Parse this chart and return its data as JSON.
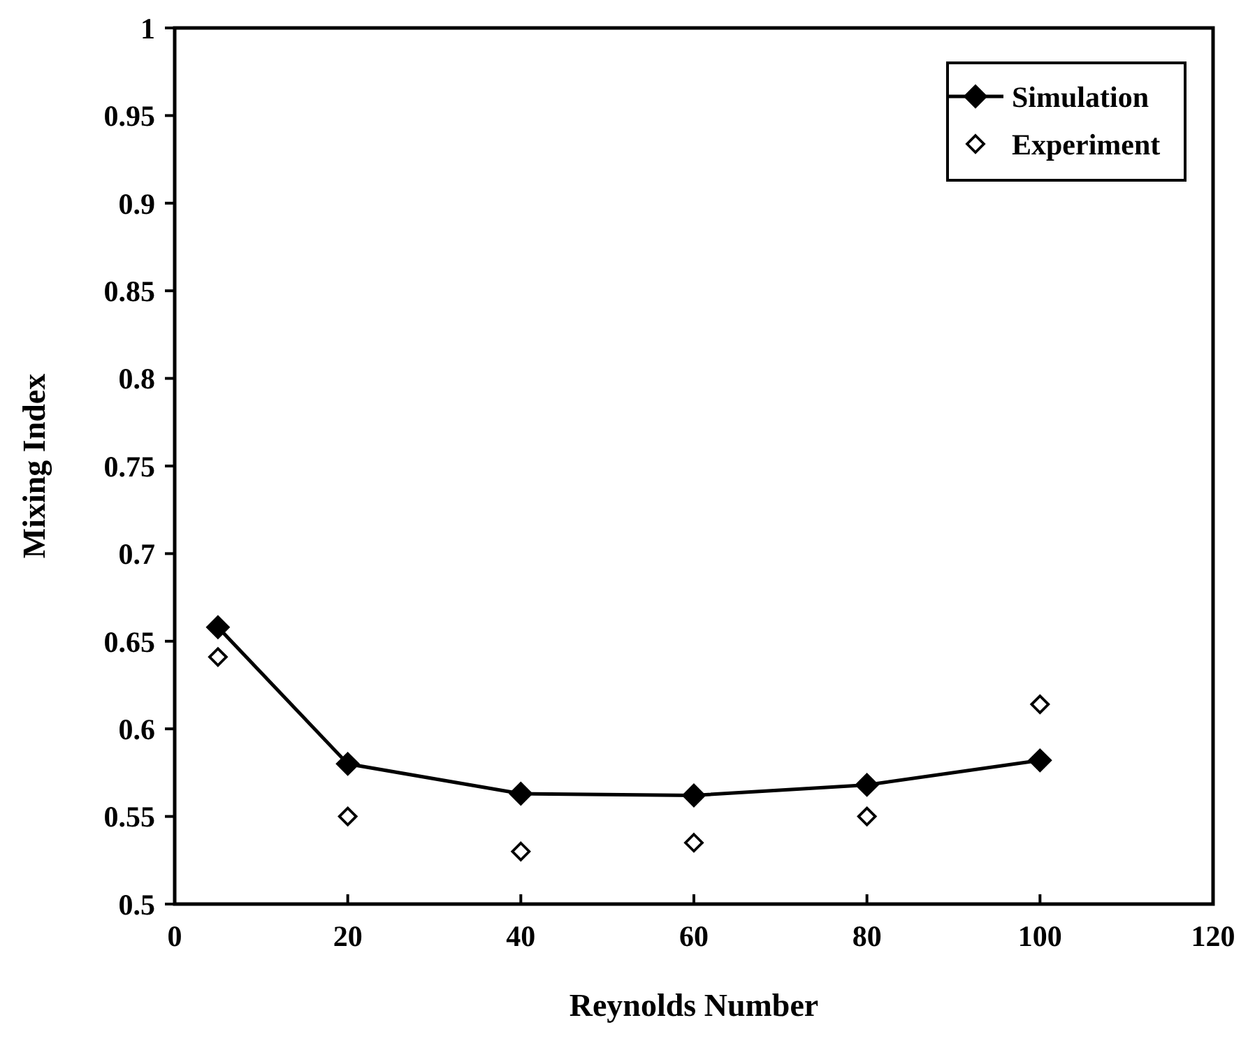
{
  "chart_data": {
    "type": "line",
    "xlabel": "Reynolds Number",
    "ylabel": "Mixing Index",
    "x": [
      5,
      20,
      40,
      60,
      80,
      100
    ],
    "series": [
      {
        "name": "Simulation",
        "color": "#000000",
        "marker": "diamond",
        "values": [
          0.658,
          0.58,
          0.563,
          0.562,
          0.568,
          0.582
        ]
      },
      {
        "name": "Experiment",
        "color": "#000000",
        "type": "scatter",
        "marker": "diamond",
        "values": [
          0.641,
          0.55,
          0.53,
          0.535,
          0.55,
          0.614
        ]
      }
    ],
    "xlim": [
      0,
      120
    ],
    "xticks": [
      0,
      20,
      40,
      60,
      80,
      100,
      120
    ],
    "ylim": [
      0.5,
      1
    ],
    "yticks": [
      0.5,
      0.55,
      0.6,
      0.65,
      0.7,
      0.75,
      0.8,
      0.85,
      0.9,
      0.95,
      1
    ],
    "grid": false,
    "legend": "top right"
  }
}
